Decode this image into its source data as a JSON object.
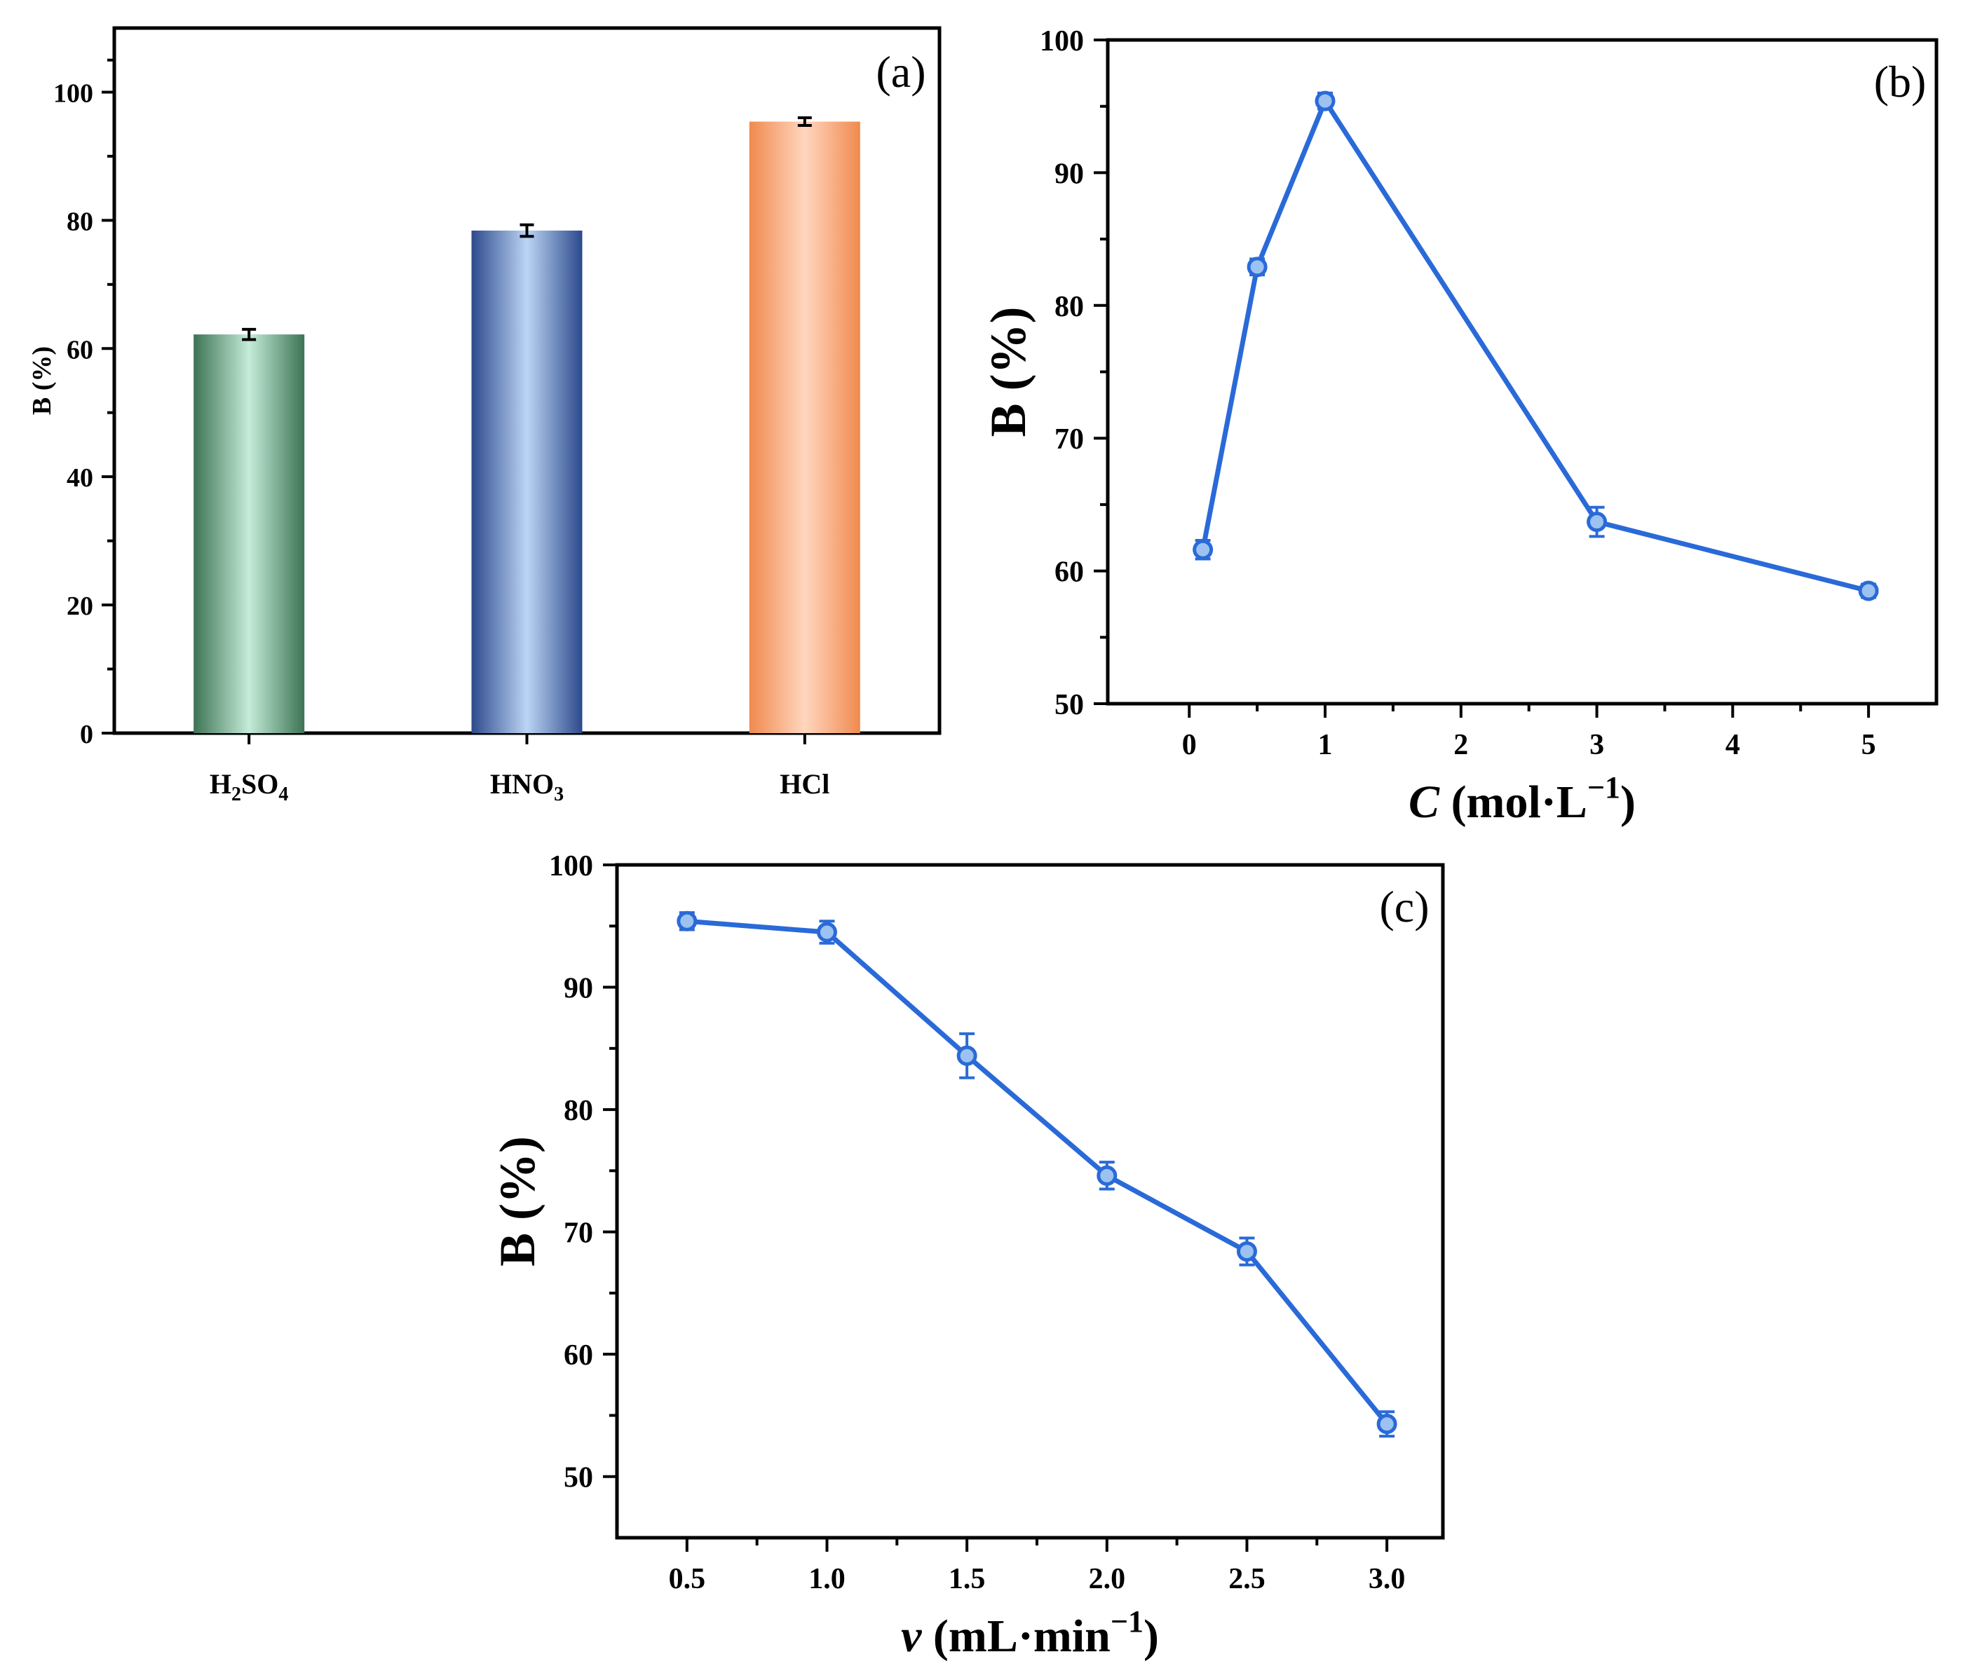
{
  "chart_data": [
    {
      "panel": "(a)",
      "type": "bar",
      "ylabel": "B (%)",
      "ylim": [
        0,
        110
      ],
      "yticks": [
        0,
        20,
        40,
        60,
        80,
        100
      ],
      "ytick_labels": [
        "0",
        "20",
        "40",
        "60",
        "80",
        "100"
      ],
      "categories": [
        {
          "base": "H",
          "sub1": "2",
          "mid": "SO",
          "sub2": "4"
        },
        {
          "base": "HNO",
          "sub1": "3",
          "mid": "",
          "sub2": ""
        },
        {
          "base": "HCl",
          "sub1": "",
          "mid": "",
          "sub2": ""
        }
      ],
      "values": [
        62.2,
        78.4,
        95.4
      ],
      "errors": [
        0.8,
        0.9,
        0.6
      ],
      "colors": [
        {
          "dark": "#3d7354",
          "light": "#c4ecd8"
        },
        {
          "dark": "#2c4a8c",
          "light": "#bcd4f4"
        },
        {
          "dark": "#f08a4e",
          "light": "#ffd6bf"
        }
      ]
    },
    {
      "panel": "(b)",
      "type": "line",
      "ylabel": "B (%)",
      "xlabel": {
        "var": "C",
        "unit": " (mol·L",
        "sup": "−1",
        "close": ")"
      },
      "xlim": [
        -0.6,
        5.5
      ],
      "ylim": [
        50,
        100
      ],
      "xticks": [
        0,
        1,
        2,
        3,
        4,
        5
      ],
      "xtick_labels": [
        "0",
        "1",
        "2",
        "3",
        "4",
        "5"
      ],
      "yticks": [
        50,
        60,
        70,
        80,
        90,
        100
      ],
      "ytick_labels": [
        "50",
        "60",
        "70",
        "80",
        "90",
        "100"
      ],
      "x": [
        0.1,
        0.5,
        1,
        3,
        5
      ],
      "y": [
        61.6,
        82.9,
        95.4,
        63.7,
        58.5
      ],
      "errors": [
        0.7,
        0.6,
        0.6,
        1.1,
        0.5
      ],
      "color": "#2a6ad8"
    },
    {
      "panel": "(c)",
      "type": "line",
      "ylabel": "B (%)",
      "xlabel": {
        "var": "v",
        "unit": " (mL·min",
        "sup": "−1",
        "close": ")"
      },
      "xlim": [
        0.25,
        3.2
      ],
      "ylim": [
        45,
        100
      ],
      "xticks": [
        0.5,
        1.0,
        1.5,
        2.0,
        2.5,
        3.0
      ],
      "xtick_labels": [
        "0.5",
        "1.0",
        "1.5",
        "2.0",
        "2.5",
        "3.0"
      ],
      "yticks": [
        50,
        60,
        70,
        80,
        90,
        100
      ],
      "ytick_labels": [
        "50",
        "60",
        "70",
        "80",
        "90",
        "100"
      ],
      "x": [
        0.5,
        1.0,
        1.5,
        2.0,
        2.5,
        3.0
      ],
      "y": [
        95.4,
        94.5,
        84.4,
        74.6,
        68.4,
        54.3
      ],
      "errors": [
        0.7,
        0.9,
        1.8,
        1.1,
        1.1,
        1.0
      ],
      "color": "#2a6ad8"
    }
  ]
}
